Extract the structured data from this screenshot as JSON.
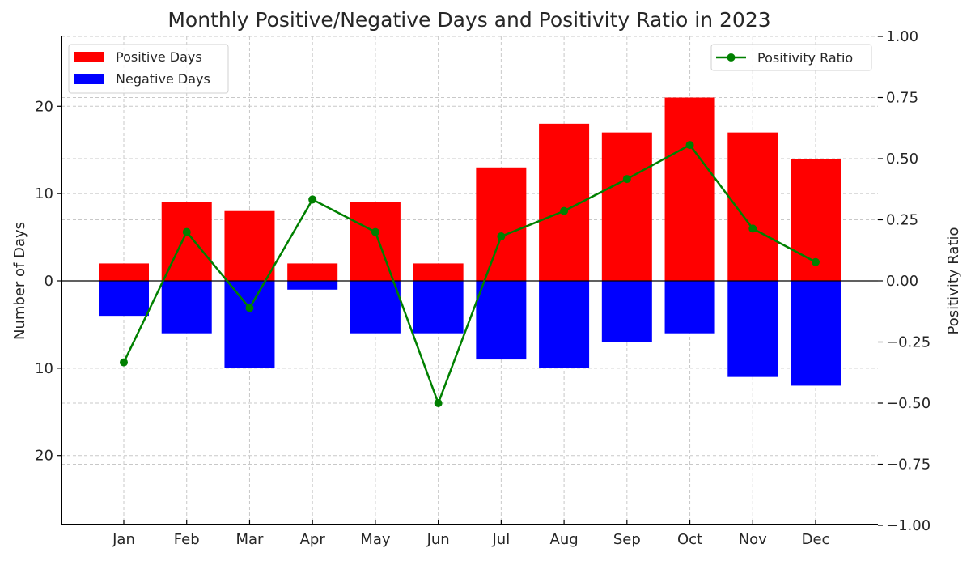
{
  "chart_data": {
    "type": "bar",
    "title": "Monthly Positive/Negative Days and Positivity Ratio in 2023",
    "xlabel": "",
    "ylabel": "Number of Days",
    "y2label": "Positivity Ratio",
    "categories": [
      "Jan",
      "Feb",
      "Mar",
      "Apr",
      "May",
      "Jun",
      "Jul",
      "Aug",
      "Sep",
      "Oct",
      "Nov",
      "Dec"
    ],
    "series": [
      {
        "name": "Positive Days",
        "kind": "bar",
        "axis": "left",
        "color": "#ff0000",
        "values": [
          2,
          9,
          8,
          2,
          9,
          2,
          13,
          18,
          17,
          21,
          17,
          14
        ]
      },
      {
        "name": "Negative Days",
        "kind": "bar",
        "axis": "left",
        "color": "#0000ff",
        "values": [
          -4,
          -6,
          -10,
          -1,
          -6,
          -6,
          -9,
          -10,
          -7,
          -6,
          -11,
          -12
        ]
      },
      {
        "name": "Positivity Ratio",
        "kind": "line",
        "axis": "right",
        "color": "#008000",
        "values": [
          -0.333,
          0.2,
          -0.111,
          0.333,
          0.2,
          -0.5,
          0.182,
          0.286,
          0.417,
          0.556,
          0.214,
          0.077
        ]
      }
    ],
    "ylim": [
      -28,
      28
    ],
    "y2lim": [
      -1.0,
      1.0
    ],
    "yticks": [
      -20,
      -10,
      0,
      10,
      20
    ],
    "ytick_labels": [
      "20",
      "10",
      "0",
      "10",
      "20"
    ],
    "y2ticks": [
      -1.0,
      -0.75,
      -0.5,
      -0.25,
      0.0,
      0.25,
      0.5,
      0.75,
      1.0
    ],
    "y2tick_labels": [
      "−1.00",
      "−0.75",
      "−0.50",
      "−0.25",
      "0.00",
      "0.25",
      "0.50",
      "0.75",
      "1.00"
    ],
    "grid": true,
    "legends": [
      {
        "placement": "top-left",
        "entries": [
          "Positive Days",
          "Negative Days"
        ]
      },
      {
        "placement": "top-right",
        "entries": [
          "Positivity Ratio"
        ]
      }
    ]
  }
}
